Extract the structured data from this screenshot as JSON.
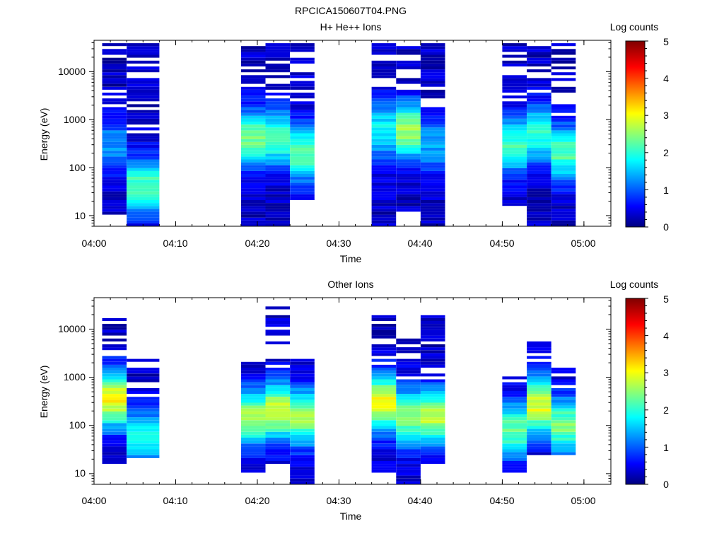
{
  "figure_title": "RPCICA150607T04.PNG",
  "chart_data": [
    {
      "type": "heatmap",
      "title": "H+ He++ Ions",
      "xlabel": "Time",
      "ylabel": "Energy (eV)",
      "x_tick_labels": [
        "04:00",
        "04:10",
        "04:20",
        "04:30",
        "04:40",
        "04:50",
        "05:00"
      ],
      "y_tick_labels": [
        "10",
        "100",
        "1000",
        "10000"
      ],
      "y_scale": "log",
      "ylim": [
        6,
        45000
      ],
      "colorbar": {
        "label": "Log counts",
        "range": [
          0,
          5
        ],
        "tick_labels": [
          "0",
          "1",
          "2",
          "3",
          "4",
          "5"
        ]
      },
      "columns": [
        {
          "start": "04:01",
          "end": "04:04",
          "emin": 10,
          "emax": 40000,
          "peak_energy": 300,
          "peak": 1.3,
          "floor": 0.25
        },
        {
          "start": "04:04",
          "end": "04:08",
          "emin": 6,
          "emax": 40000,
          "peak_energy": 40,
          "peak": 2.2,
          "floor": 0.3
        },
        {
          "start": "04:18",
          "end": "04:21",
          "emin": 6,
          "emax": 40000,
          "peak_energy": 400,
          "peak": 2.4,
          "floor": 0.3
        },
        {
          "start": "04:21",
          "end": "04:24",
          "emin": 6,
          "emax": 40000,
          "peak_energy": 400,
          "peak": 2.2,
          "floor": 0.3
        },
        {
          "start": "04:24",
          "end": "04:27",
          "emin": 20,
          "emax": 40000,
          "peak_energy": 200,
          "peak": 2.3,
          "floor": 0.3
        },
        {
          "start": "04:34",
          "end": "04:37",
          "emin": 6,
          "emax": 40000,
          "peak_energy": 600,
          "peak": 1.8,
          "floor": 0.3
        },
        {
          "start": "04:37",
          "end": "04:40",
          "emin": 12,
          "emax": 40000,
          "peak_energy": 600,
          "peak": 2.6,
          "floor": 0.3
        },
        {
          "start": "04:40",
          "end": "04:43",
          "emin": 6,
          "emax": 40000,
          "peak_energy": 300,
          "peak": 1.4,
          "floor": 0.3
        },
        {
          "start": "04:50",
          "end": "04:53",
          "emin": 15,
          "emax": 40000,
          "peak_energy": 300,
          "peak": 2.1,
          "floor": 0.3
        },
        {
          "start": "04:53",
          "end": "04:56",
          "emin": 6,
          "emax": 40000,
          "peak_energy": 500,
          "peak": 2.0,
          "floor": 0.3
        },
        {
          "start": "04:56",
          "end": "04:59",
          "emin": 6,
          "emax": 40000,
          "peak_energy": 200,
          "peak": 2.2,
          "floor": 0.3
        }
      ]
    },
    {
      "type": "heatmap",
      "title": "Other Ions",
      "xlabel": "Time",
      "ylabel": "Energy (eV)",
      "x_tick_labels": [
        "04:00",
        "04:10",
        "04:20",
        "04:30",
        "04:40",
        "04:50",
        "05:00"
      ],
      "y_tick_labels": [
        "10",
        "100",
        "1000",
        "10000"
      ],
      "y_scale": "log",
      "ylim": [
        6,
        45000
      ],
      "colorbar": {
        "label": "Log counts",
        "range": [
          0,
          5
        ],
        "tick_labels": [
          "0",
          "1",
          "2",
          "3",
          "4",
          "5"
        ]
      },
      "columns": [
        {
          "start": "04:01",
          "end": "04:04",
          "emin": 15,
          "emax": 16000,
          "peak_energy": 350,
          "peak": 3.0,
          "floor": 0.3
        },
        {
          "start": "04:04",
          "end": "04:08",
          "emin": 20,
          "emax": 2400,
          "peak_energy": 60,
          "peak": 1.8,
          "floor": 0.3
        },
        {
          "start": "04:18",
          "end": "04:21",
          "emin": 10,
          "emax": 3200,
          "peak_energy": 150,
          "peak": 2.6,
          "floor": 0.3
        },
        {
          "start": "04:21",
          "end": "04:24",
          "emin": 15,
          "emax": 36000,
          "peak_energy": 200,
          "peak": 2.9,
          "floor": 0.3
        },
        {
          "start": "04:24",
          "end": "04:27",
          "emin": 6,
          "emax": 2500,
          "peak_energy": 150,
          "peak": 2.6,
          "floor": 0.3
        },
        {
          "start": "04:34",
          "end": "04:37",
          "emin": 10,
          "emax": 20000,
          "peak_energy": 300,
          "peak": 3.0,
          "floor": 0.3
        },
        {
          "start": "04:37",
          "end": "04:40",
          "emin": 6,
          "emax": 6000,
          "peak_energy": 150,
          "peak": 2.5,
          "floor": 0.3
        },
        {
          "start": "04:40",
          "end": "04:43",
          "emin": 15,
          "emax": 21000,
          "peak_energy": 150,
          "peak": 2.7,
          "floor": 0.3
        },
        {
          "start": "04:50",
          "end": "04:53",
          "emin": 10,
          "emax": 1100,
          "peak_energy": 80,
          "peak": 2.3,
          "floor": 0.3
        },
        {
          "start": "04:53",
          "end": "04:56",
          "emin": 25,
          "emax": 7000,
          "peak_energy": 250,
          "peak": 2.9,
          "floor": 0.3
        },
        {
          "start": "04:56",
          "end": "04:59",
          "emin": 25,
          "emax": 1500,
          "peak_energy": 100,
          "peak": 2.4,
          "floor": 0.3
        }
      ]
    }
  ]
}
